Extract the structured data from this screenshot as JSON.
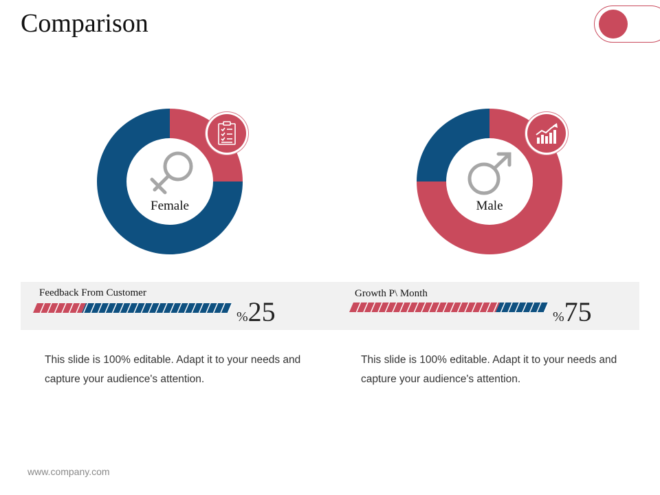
{
  "title": "Comparison",
  "colors": {
    "red": "#c94a5c",
    "blue": "#0e5080",
    "band": "#f1f1f1"
  },
  "panels": [
    {
      "label": "Female",
      "icon": "clipboard-checklist-icon",
      "gender_icon": "female-symbol-icon",
      "donut": {
        "red_fraction": 0.25,
        "blue_fraction": 0.75
      },
      "stat_label": "Feedback From Customer",
      "percent_symbol": "%",
      "percent_value": "25",
      "progress": 0.25,
      "description": "This slide is 100% editable. Adapt it to your needs and capture your audience's attention."
    },
    {
      "label": "Male",
      "icon": "growth-chart-icon",
      "gender_icon": "male-symbol-icon",
      "donut": {
        "red_fraction": 0.75,
        "blue_fraction": 0.25
      },
      "stat_label": "Growth P\\ Month",
      "percent_symbol": "%",
      "percent_value": "75",
      "progress": 0.75,
      "description": "This slide is 100% editable. Adapt it to your needs and capture your audience's attention."
    }
  ],
  "footer": "www.company.com"
}
